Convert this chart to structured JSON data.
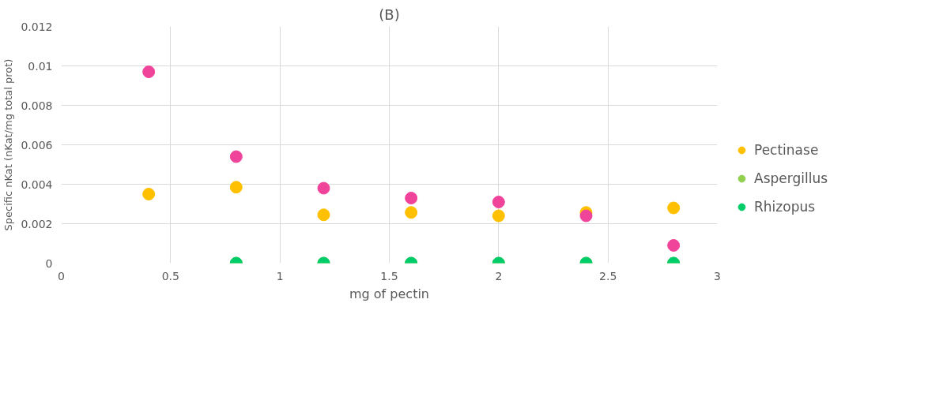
{
  "chart_data": {
    "type": "scatter",
    "title": "(B)",
    "xlabel": "mg of pectin",
    "ylabel": "Specific nKat (nKat/mg total prot)",
    "x": [
      0.4,
      0.8,
      1.2,
      1.6,
      2.0,
      2.4,
      2.8
    ],
    "series": [
      {
        "name": "Pectinase",
        "color": "#ffc000",
        "values": [
          0.0035,
          0.00385,
          0.00245,
          0.00257,
          0.0024,
          0.00257,
          0.0028
        ]
      },
      {
        "name": "Aspergillus",
        "color": "#92d050",
        "values": [
          null,
          0,
          0,
          0,
          0,
          0,
          0
        ]
      },
      {
        "name": "Rhizopus",
        "color": "#00cc6a",
        "values": [
          null,
          0,
          0,
          0,
          0,
          0,
          0
        ]
      },
      {
        "color": "#f0449a",
        "values": [
          0.0097,
          0.0054,
          0.0038,
          0.0033,
          0.0031,
          0.0024,
          0.0009
        ]
      }
    ],
    "xlim": [
      0,
      3
    ],
    "xticks": [
      0,
      0.5,
      1,
      1.5,
      2,
      2.5,
      3
    ],
    "ylim": [
      0,
      0.012
    ],
    "yticks": [
      0,
      0.002,
      0.004,
      0.006,
      0.008,
      0.01,
      0.012
    ],
    "grid": true,
    "legend": "right",
    "marker": "circle"
  }
}
